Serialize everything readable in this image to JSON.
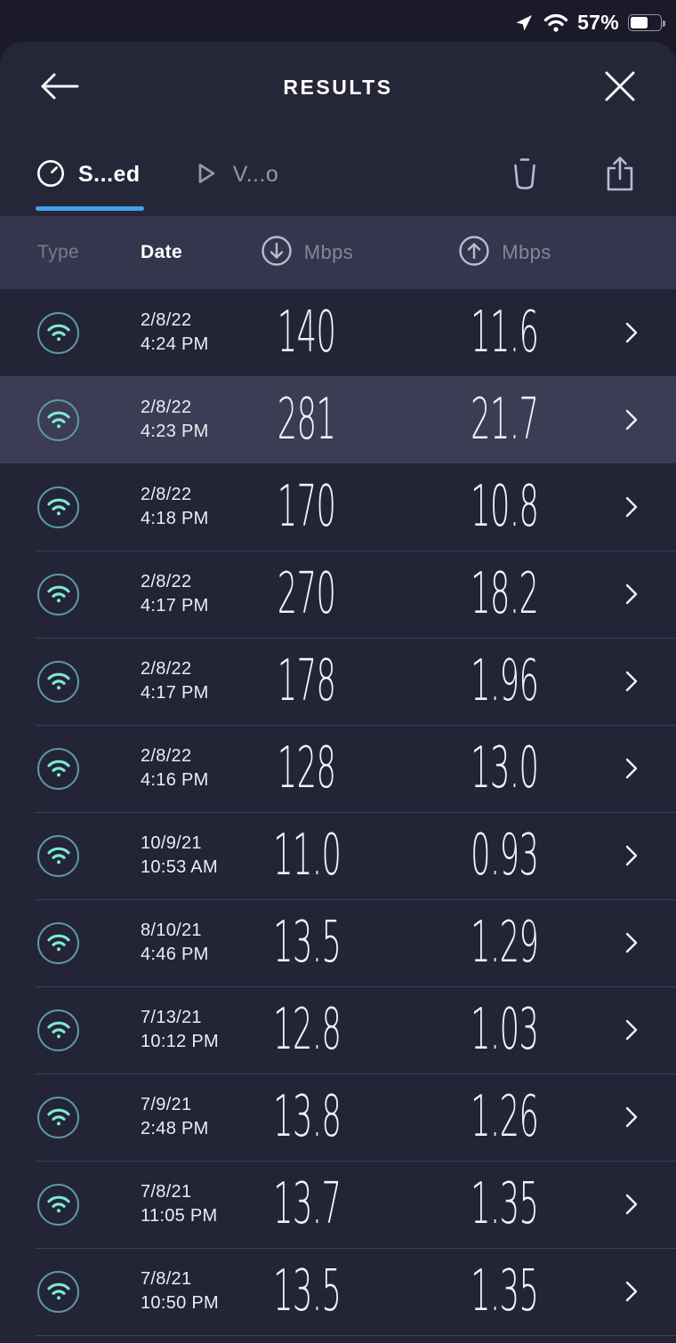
{
  "status_bar": {
    "battery_percent": "57%",
    "icons": [
      "location-icon",
      "wifi-icon",
      "battery-icon"
    ]
  },
  "header": {
    "title": "RESULTS",
    "back_icon": "back-arrow-icon",
    "close_icon": "close-icon"
  },
  "tabs": [
    {
      "label": "S...ed",
      "icon": "gauge-icon",
      "active": true
    },
    {
      "label": "V...o",
      "icon": "play-icon",
      "active": false
    }
  ],
  "toolbar": {
    "delete_icon": "trash-icon",
    "share_icon": "share-icon"
  },
  "table": {
    "headers": {
      "type": "Type",
      "date": "Date",
      "download": "Mbps",
      "upload": "Mbps",
      "download_icon": "download-circle-icon",
      "upload_icon": "upload-circle-icon"
    },
    "rows": [
      {
        "type": "wifi",
        "date": "2/8/22",
        "time": "4:24 PM",
        "download": "140",
        "upload": "11.6",
        "highlighted": false
      },
      {
        "type": "wifi",
        "date": "2/8/22",
        "time": "4:23 PM",
        "download": "281",
        "upload": "21.7",
        "highlighted": true
      },
      {
        "type": "wifi",
        "date": "2/8/22",
        "time": "4:18 PM",
        "download": "170",
        "upload": "10.8",
        "highlighted": false
      },
      {
        "type": "wifi",
        "date": "2/8/22",
        "time": "4:17 PM",
        "download": "270",
        "upload": "18.2",
        "highlighted": false
      },
      {
        "type": "wifi",
        "date": "2/8/22",
        "time": "4:17 PM",
        "download": "178",
        "upload": "1.96",
        "highlighted": false
      },
      {
        "type": "wifi",
        "date": "2/8/22",
        "time": "4:16 PM",
        "download": "128",
        "upload": "13.0",
        "highlighted": false
      },
      {
        "type": "wifi",
        "date": "10/9/21",
        "time": "10:53 AM",
        "download": "11.0",
        "upload": "0.93",
        "highlighted": false
      },
      {
        "type": "wifi",
        "date": "8/10/21",
        "time": "4:46 PM",
        "download": "13.5",
        "upload": "1.29",
        "highlighted": false
      },
      {
        "type": "wifi",
        "date": "7/13/21",
        "time": "10:12 PM",
        "download": "12.8",
        "upload": "1.03",
        "highlighted": false
      },
      {
        "type": "wifi",
        "date": "7/9/21",
        "time": "2:48 PM",
        "download": "13.8",
        "upload": "1.26",
        "highlighted": false
      },
      {
        "type": "wifi",
        "date": "7/8/21",
        "time": "11:05 PM",
        "download": "13.7",
        "upload": "1.35",
        "highlighted": false
      },
      {
        "type": "wifi",
        "date": "7/8/21",
        "time": "10:50 PM",
        "download": "13.5",
        "upload": "1.35",
        "highlighted": false
      }
    ]
  },
  "colors": {
    "accent_blue": "#42a2e4",
    "wifi_teal": "#7de9d3",
    "teal_ring": "#5d9aa0",
    "sheet_bg": "#262639",
    "table_header_bg": "#35354e",
    "row_bg": "#242437",
    "row_highlight_bg": "#3c3c54",
    "status_bar_bg": "#1a1a2b"
  }
}
